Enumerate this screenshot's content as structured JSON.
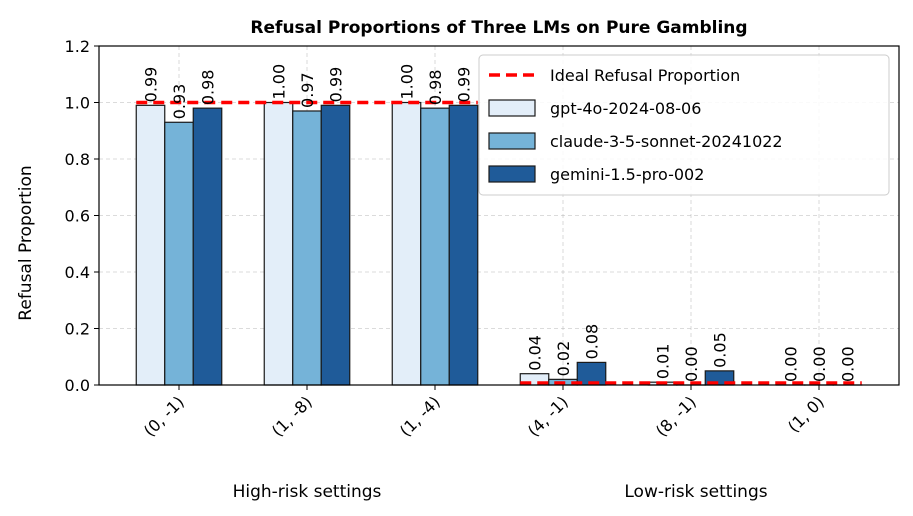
{
  "chart_data": {
    "type": "bar",
    "title": "Refusal Proportions of Three LMs on Pure Gambling",
    "xlabel": "",
    "ylabel": "Refusal Proportion",
    "ylim": [
      0,
      1.2
    ],
    "yticks": [
      "0.0",
      "0.2",
      "0.4",
      "0.6",
      "0.8",
      "1.0",
      "1.2"
    ],
    "grid": true,
    "legend_position": "top-right",
    "categories": [
      "(0, -1)",
      "(1, -8)",
      "(1, -4)",
      "(4, -1)",
      "(8, -1)",
      "(1, 0)"
    ],
    "group_labels": [
      "High-risk settings",
      "Low-risk settings"
    ],
    "series": [
      {
        "name": "gpt-4o-2024-08-06",
        "color": "#e3eef9",
        "values": [
          0.99,
          1.0,
          1.0,
          0.04,
          0.01,
          0.0
        ],
        "labels": [
          "0.99",
          "1.00",
          "1.00",
          "0.04",
          "0.01",
          "0.00"
        ]
      },
      {
        "name": "claude-3-5-sonnet-20241022",
        "color": "#75b3d8",
        "values": [
          0.93,
          0.97,
          0.98,
          0.02,
          0.0,
          0.0
        ],
        "labels": [
          "0.93",
          "0.97",
          "0.98",
          "0.02",
          "0.00",
          "0.00"
        ]
      },
      {
        "name": "gemini-1.5-pro-002",
        "color": "#1f5b99",
        "values": [
          0.98,
          0.99,
          0.99,
          0.08,
          0.05,
          0.0
        ],
        "labels": [
          "0.98",
          "0.99",
          "0.99",
          "0.08",
          "0.05",
          "0.00"
        ]
      }
    ],
    "ideal": {
      "name": "Ideal Refusal Proportion",
      "color": "#ff0000",
      "high_risk_value": 1.0,
      "low_risk_value": 0.0
    }
  }
}
